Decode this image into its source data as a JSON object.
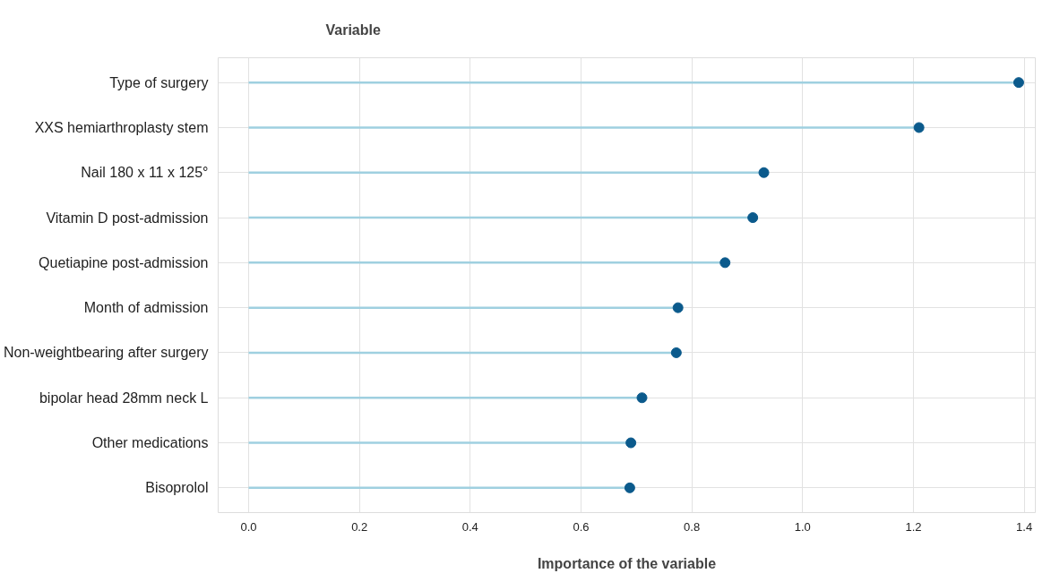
{
  "chart_data": {
    "type": "lollipop",
    "orientation": "horizontal",
    "ylabel": "Variable",
    "xlabel": "Importance of the variable",
    "categories": [
      "Type of surgery",
      "XXS hemiarthroplasty stem",
      "Nail 180 x 11 x 125°",
      "Vitamin D post-admission",
      "Quetiapine post-admission",
      "Month of admission",
      "Non-weightbearing after surgery",
      "bipolar head 28mm neck L",
      "Other medications",
      "Bisoprolol"
    ],
    "values": [
      1.39,
      1.21,
      0.93,
      0.91,
      0.86,
      0.775,
      0.772,
      0.71,
      0.69,
      0.688
    ],
    "color": "#0b5a8c",
    "xlim": [
      -0.055,
      1.42
    ],
    "xticks": [
      {
        "value": 0,
        "label": "0.0"
      },
      {
        "value": 0.2,
        "label": "0.2"
      },
      {
        "value": 0.4,
        "label": "0.4"
      },
      {
        "value": 0.6,
        "label": "0.6"
      },
      {
        "value": 0.8,
        "label": "0.8"
      },
      {
        "value": 1,
        "label": "1.0"
      },
      {
        "value": 1.2,
        "label": "1.2"
      },
      {
        "value": 1.4,
        "label": "1.4"
      }
    ],
    "grid": true,
    "marker": "circle"
  }
}
